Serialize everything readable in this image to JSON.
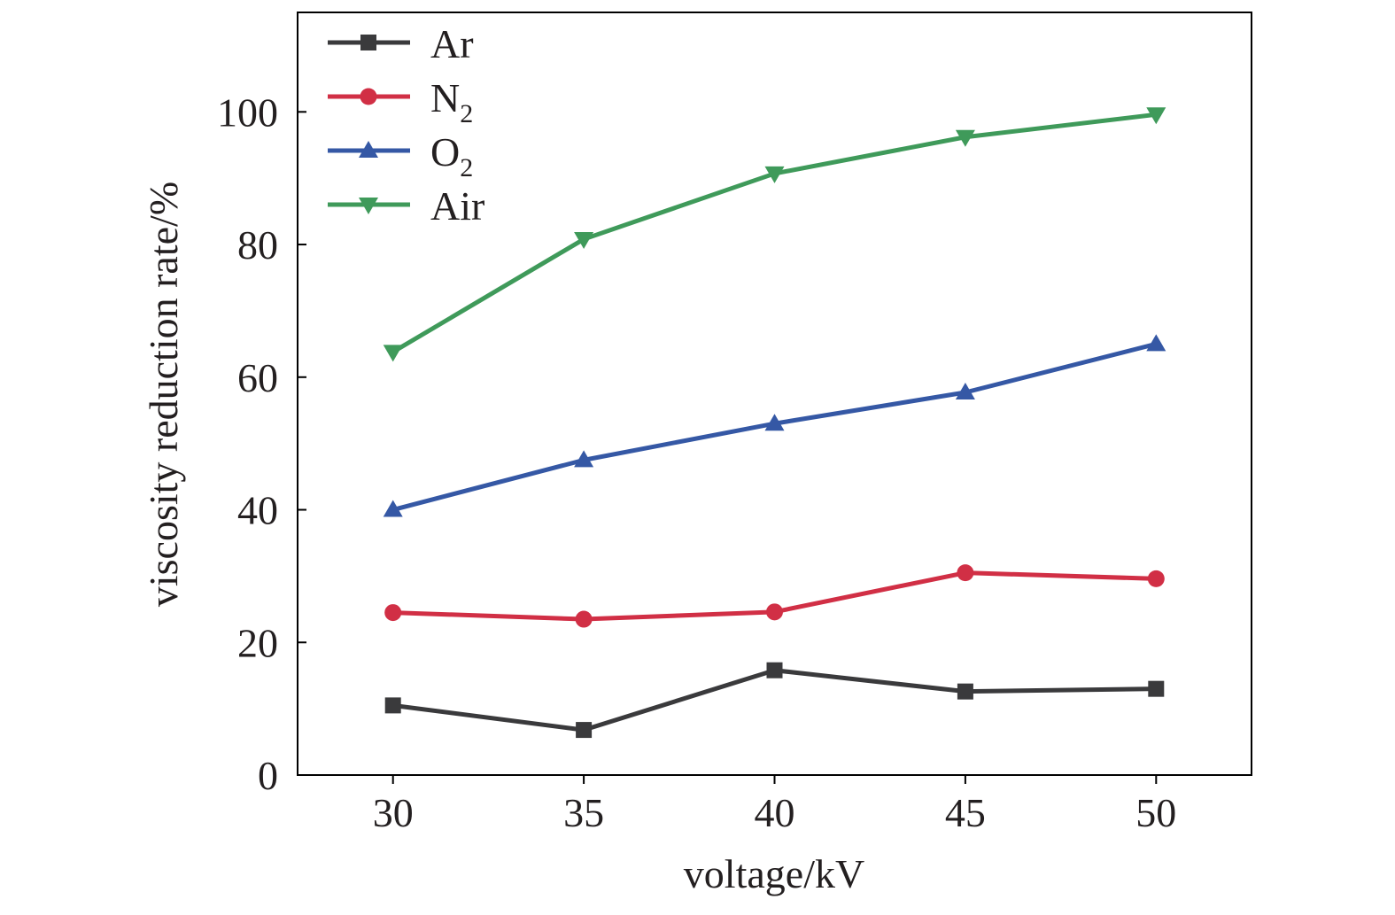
{
  "chart_data": {
    "type": "line",
    "title": "",
    "xlabel": "voltage/kV",
    "ylabel": "viscosity reduction rate/%",
    "x": [
      30,
      35,
      40,
      45,
      50
    ],
    "xlim": [
      27.5,
      52.5
    ],
    "ylim": [
      0,
      115
    ],
    "xticks": [
      30,
      35,
      40,
      45,
      50
    ],
    "yticks": [
      0,
      20,
      40,
      60,
      80,
      100
    ],
    "grid": false,
    "legend_position": "top-left",
    "series": [
      {
        "name": "Ar",
        "name_main": "Ar",
        "name_sub": "",
        "marker": "square",
        "color": "#3a3a3c",
        "values": [
          10.5,
          6.8,
          15.8,
          12.6,
          13.0
        ]
      },
      {
        "name": "N2",
        "name_main": "N",
        "name_sub": "2",
        "marker": "circle",
        "color": "#d12f45",
        "values": [
          24.5,
          23.5,
          24.6,
          30.5,
          29.6
        ]
      },
      {
        "name": "O2",
        "name_main": "O",
        "name_sub": "2",
        "marker": "triangle-up",
        "color": "#3558a5",
        "values": [
          40.0,
          47.5,
          53.0,
          57.7,
          65.0
        ]
      },
      {
        "name": "Air",
        "name_main": "Air",
        "name_sub": "",
        "marker": "triangle-down",
        "color": "#3f9a5a",
        "values": [
          63.8,
          80.8,
          90.7,
          96.2,
          99.6
        ]
      }
    ]
  }
}
